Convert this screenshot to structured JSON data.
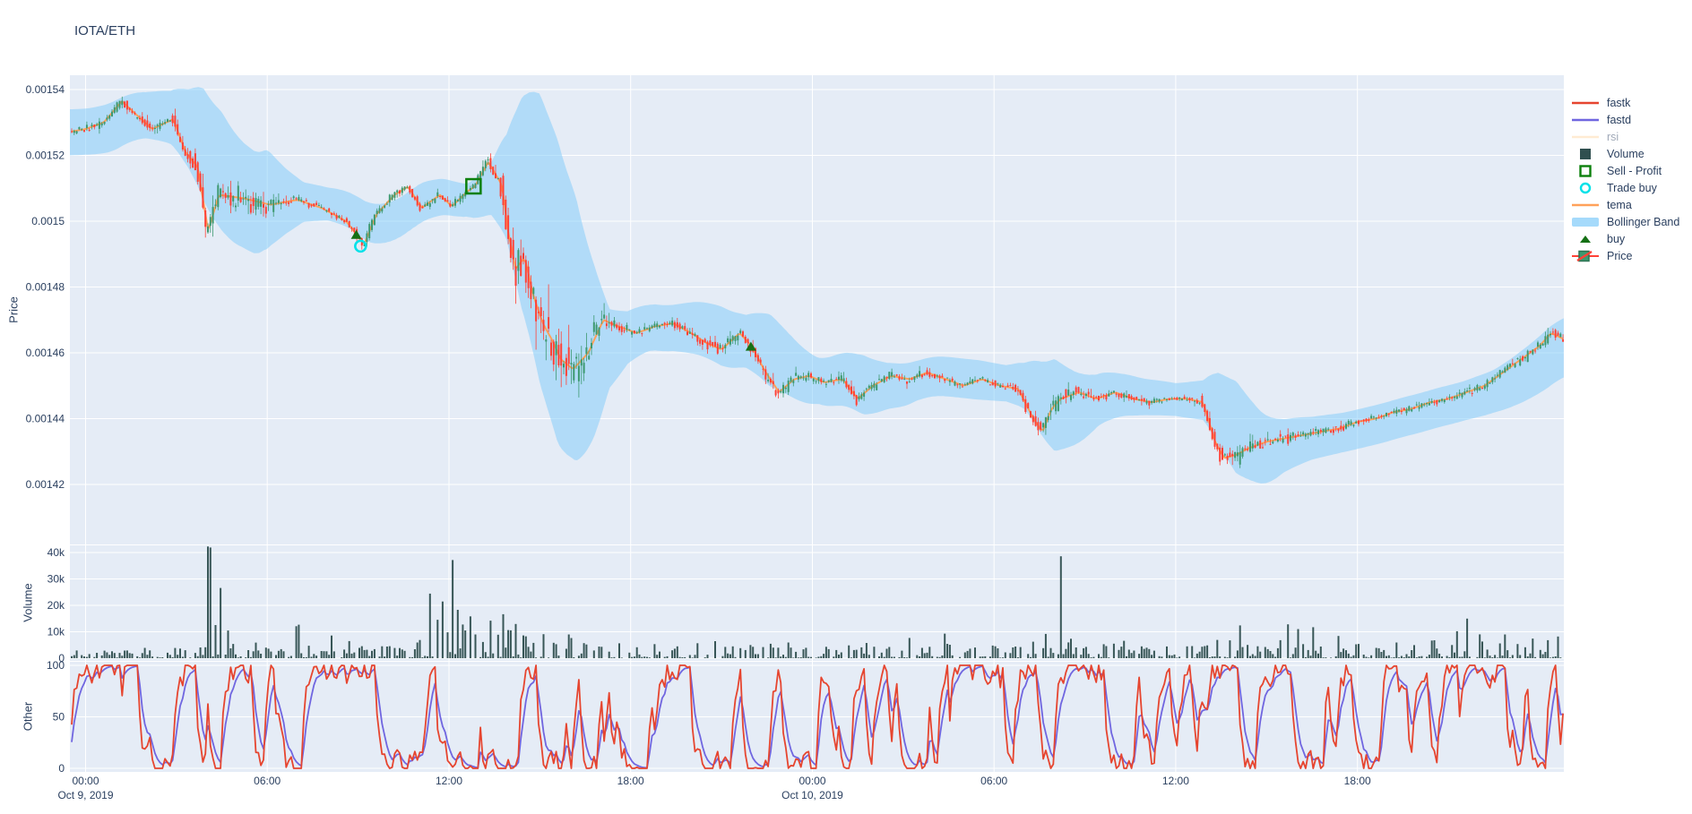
{
  "title": "IOTA/ETH",
  "axes": {
    "price_label": "Price",
    "volume_label": "Volume",
    "other_label": "Other"
  },
  "colors": {
    "paper_bg": "#ffffff",
    "plot_bg": "#E5ECF6",
    "grid": "#ffffff",
    "text": "#2a3f5f",
    "candle_up": "#3D9970",
    "candle_down": "#FF4136",
    "tema": "#FFA15A",
    "bollinger_fill": "rgba(135,206,250,0.55)",
    "volume_bar": "#2F4F4F",
    "fastk": "#E6452F",
    "fastd": "#7066E0",
    "rsi": "#FFD9A8",
    "buy_marker": "#157015",
    "sell_profit_marker": "#0C800C",
    "trade_buy_marker": "#00E1E8"
  },
  "legend": {
    "items": [
      {
        "label": "fastk",
        "type": "line",
        "color": "#E6452F",
        "disabled": false
      },
      {
        "label": "fastd",
        "type": "line",
        "color": "#7066E0",
        "disabled": false
      },
      {
        "label": "rsi",
        "type": "line",
        "color": "#FFD9A8",
        "disabled": true
      },
      {
        "label": "Volume",
        "type": "square",
        "color": "#2F4F4F",
        "disabled": false
      },
      {
        "label": "Sell - Profit",
        "type": "open-square",
        "color": "#0C800C",
        "disabled": false
      },
      {
        "label": "Trade buy",
        "type": "open-circle",
        "color": "#00E1E8",
        "disabled": false
      },
      {
        "label": "tema",
        "type": "line",
        "color": "#FFA15A",
        "disabled": false
      },
      {
        "label": "Bollinger Band",
        "type": "band",
        "color": "rgba(135,206,250,0.75)",
        "disabled": false
      },
      {
        "label": "buy",
        "type": "triangle",
        "color": "#157015",
        "disabled": false
      },
      {
        "label": "Price",
        "type": "candle",
        "color": "#3D9970",
        "disabled": false
      }
    ]
  },
  "x_axis": {
    "tick_hours": [
      0,
      6,
      12,
      18,
      24,
      30,
      36,
      42
    ],
    "tick_labels": [
      "00:00",
      "06:00",
      "12:00",
      "18:00",
      "00:00",
      "06:00",
      "12:00",
      "18:00"
    ],
    "date_labels": [
      {
        "tick_index": 0,
        "label": "Oct 9, 2019"
      },
      {
        "tick_index": 4,
        "label": "Oct 10, 2019"
      }
    ],
    "hours_range": [
      -0.52,
      48.85
    ]
  },
  "chart_data": [
    {
      "name": "price",
      "type": "candlestick",
      "ylabel": "Price",
      "ylim": [
        0.0014016,
        0.0015444
      ],
      "yticks": [
        {
          "label": "0.00154",
          "value": 0.00154
        },
        {
          "label": "0.00152",
          "value": 0.00152
        },
        {
          "label": "0.0015",
          "value": 0.0015
        },
        {
          "label": "0.00148",
          "value": 0.00148
        },
        {
          "label": "0.00146",
          "value": 0.00146
        },
        {
          "label": "0.00144",
          "value": 0.00144
        },
        {
          "label": "0.00142",
          "value": 0.00142
        }
      ],
      "candle_interval_minutes": 5,
      "series_hidden": [
        "rsi"
      ],
      "tema_anchors": [
        [
          -0.6,
          0.001527
        ],
        [
          0,
          0.001528
        ],
        [
          0.6,
          0.00153
        ],
        [
          1.2,
          0.0015365
        ],
        [
          1.6,
          0.001533
        ],
        [
          2.2,
          0.001528
        ],
        [
          2.9,
          0.001531
        ],
        [
          3.3,
          0.001521
        ],
        [
          3.7,
          0.0015165
        ],
        [
          4.05,
          0.001497
        ],
        [
          4.4,
          0.001508
        ],
        [
          5.2,
          0.001507
        ],
        [
          6.1,
          0.001505
        ],
        [
          7.0,
          0.0015065
        ],
        [
          7.8,
          0.001504
        ],
        [
          8.6,
          0.0015
        ],
        [
          8.95,
          0.001496
        ],
        [
          9.2,
          0.001493
        ],
        [
          9.6,
          0.001502
        ],
        [
          10.2,
          0.001508
        ],
        [
          10.65,
          0.0015105
        ],
        [
          11.1,
          0.001504
        ],
        [
          11.7,
          0.001508
        ],
        [
          12.1,
          0.0015045
        ],
        [
          12.6,
          0.001509
        ],
        [
          12.85,
          0.0015105
        ],
        [
          13.3,
          0.001518
        ],
        [
          13.75,
          0.001511
        ],
        [
          13.95,
          0.001497
        ],
        [
          14.2,
          0.0014855
        ],
        [
          14.5,
          0.001489
        ],
        [
          14.8,
          0.001477
        ],
        [
          15.1,
          0.001469
        ],
        [
          15.4,
          0.001464
        ],
        [
          15.7,
          0.001458
        ],
        [
          16.1,
          0.001455
        ],
        [
          16.6,
          0.00146
        ],
        [
          17.1,
          0.00147
        ],
        [
          17.6,
          0.001468
        ],
        [
          18.2,
          0.001466
        ],
        [
          18.8,
          0.001468
        ],
        [
          19.4,
          0.001469
        ],
        [
          20.0,
          0.001466
        ],
        [
          20.5,
          0.001463
        ],
        [
          21.0,
          0.001461
        ],
        [
          21.6,
          0.001466
        ],
        [
          22.0,
          0.001462
        ],
        [
          22.4,
          0.001455
        ],
        [
          22.9,
          0.001448
        ],
        [
          23.4,
          0.001452
        ],
        [
          23.9,
          0.001453
        ],
        [
          24.4,
          0.001451
        ],
        [
          25.0,
          0.001452
        ],
        [
          25.5,
          0.001446
        ],
        [
          26.0,
          0.00145
        ],
        [
          26.6,
          0.001453
        ],
        [
          27.2,
          0.001452
        ],
        [
          27.8,
          0.001454
        ],
        [
          28.4,
          0.001452
        ],
        [
          29.0,
          0.00145
        ],
        [
          29.6,
          0.001452
        ],
        [
          30.2,
          0.00145
        ],
        [
          30.8,
          0.001449
        ],
        [
          31.3,
          0.00144
        ],
        [
          31.6,
          0.001436
        ],
        [
          31.9,
          0.001443
        ],
        [
          32.2,
          0.001446
        ],
        [
          32.8,
          0.001448
        ],
        [
          33.4,
          0.001446
        ],
        [
          34.0,
          0.001448
        ],
        [
          34.6,
          0.001446
        ],
        [
          35.2,
          0.001445
        ],
        [
          35.8,
          0.001446
        ],
        [
          36.4,
          0.001446
        ],
        [
          36.9,
          0.001445
        ],
        [
          37.3,
          0.001433
        ],
        [
          37.6,
          0.001428
        ],
        [
          38.0,
          0.001429
        ],
        [
          38.4,
          0.001431
        ],
        [
          39.0,
          0.001433
        ],
        [
          39.6,
          0.001434
        ],
        [
          40.2,
          0.001435
        ],
        [
          40.8,
          0.001436
        ],
        [
          41.4,
          0.001437
        ],
        [
          42.0,
          0.001439
        ],
        [
          42.6,
          0.00144
        ],
        [
          43.2,
          0.001442
        ],
        [
          43.8,
          0.001443
        ],
        [
          44.4,
          0.001445
        ],
        [
          45.0,
          0.001446
        ],
        [
          45.6,
          0.001448
        ],
        [
          46.2,
          0.00145
        ],
        [
          46.8,
          0.001454
        ],
        [
          47.4,
          0.001458
        ],
        [
          48.0,
          0.001462
        ],
        [
          48.4,
          0.001466
        ],
        [
          48.85,
          0.001464
        ]
      ],
      "bollinger_halfwidth_anchors": [
        [
          -0.5,
          7e-06
        ],
        [
          0,
          7e-06
        ],
        [
          1,
          7.5e-06
        ],
        [
          2,
          7e-06
        ],
        [
          2.8,
          8e-06
        ],
        [
          3.4,
          1.2e-05
        ],
        [
          3.9,
          1.7e-05
        ],
        [
          4.5,
          1.8e-05
        ],
        [
          5.2,
          1.6e-05
        ],
        [
          6.0,
          1.5e-05
        ],
        [
          6.6,
          1e-05
        ],
        [
          7.2,
          6e-06
        ],
        [
          8.0,
          5e-06
        ],
        [
          8.8,
          5.5e-06
        ],
        [
          9.4,
          6e-06
        ],
        [
          10.2,
          6e-06
        ],
        [
          11.0,
          6e-06
        ],
        [
          11.8,
          5.5e-06
        ],
        [
          12.6,
          5e-06
        ],
        [
          13.4,
          8e-06
        ],
        [
          13.9,
          1.6e-05
        ],
        [
          14.4,
          3.2e-05
        ],
        [
          15.0,
          4.4e-05
        ],
        [
          15.6,
          4.6e-05
        ],
        [
          16.2,
          4e-05
        ],
        [
          16.8,
          2.6e-05
        ],
        [
          17.3,
          1.2e-05
        ],
        [
          17.9,
          8e-06
        ],
        [
          18.6,
          7e-06
        ],
        [
          19.4,
          7e-06
        ],
        [
          20.2,
          8e-06
        ],
        [
          21.0,
          9e-06
        ],
        [
          21.8,
          8e-06
        ],
        [
          22.6,
          1.1e-05
        ],
        [
          23.4,
          9e-06
        ],
        [
          24.2,
          7e-06
        ],
        [
          25.0,
          8e-06
        ],
        [
          25.7,
          9e-06
        ],
        [
          26.5,
          7e-06
        ],
        [
          27.5,
          6e-06
        ],
        [
          28.5,
          6e-06
        ],
        [
          29.5,
          6e-06
        ],
        [
          30.4,
          5.5e-06
        ],
        [
          31.0,
          7e-06
        ],
        [
          31.4,
          1e-05
        ],
        [
          32.0,
          1.4e-05
        ],
        [
          32.7,
          1.1e-05
        ],
        [
          33.4,
          8e-06
        ],
        [
          34.2,
          6.5e-06
        ],
        [
          35.0,
          5.5e-06
        ],
        [
          36.0,
          5e-06
        ],
        [
          36.9,
          6e-06
        ],
        [
          37.4,
          1.1e-05
        ],
        [
          38.0,
          1.4e-05
        ],
        [
          38.8,
          1.1e-05
        ],
        [
          39.6,
          8e-06
        ],
        [
          40.5,
          6.5e-06
        ],
        [
          41.5,
          6e-06
        ],
        [
          42.5,
          6e-06
        ],
        [
          43.5,
          6e-06
        ],
        [
          44.5,
          6e-06
        ],
        [
          45.5,
          6e-06
        ],
        [
          46.5,
          6.5e-06
        ],
        [
          47.5,
          8e-06
        ],
        [
          48.3,
          9e-06
        ],
        [
          48.85,
          9e-06
        ]
      ],
      "markers": {
        "buy": [
          [
            8.94,
            0.001496
          ],
          [
            21.97,
            0.001462
          ]
        ],
        "trade_buy": [
          [
            9.08,
            0.0014924
          ]
        ],
        "sell_profit": [
          [
            12.81,
            0.0015106
          ]
        ]
      },
      "candle_seed": 5
    },
    {
      "name": "volume",
      "type": "bar",
      "ylabel": "Volume",
      "ylim": [
        0,
        43000
      ],
      "yticks": [
        {
          "label": "40k",
          "value": 40000
        },
        {
          "label": "30k",
          "value": 30000
        },
        {
          "label": "20k",
          "value": 20000
        },
        {
          "label": "10k",
          "value": 10000
        },
        {
          "label": "0",
          "value": 0
        }
      ],
      "spike_anchors_k": [
        [
          0.4,
          2
        ],
        [
          0.9,
          3
        ],
        [
          1.5,
          2
        ],
        [
          2.1,
          3
        ],
        [
          2.7,
          2
        ],
        [
          3.3,
          3
        ],
        [
          3.8,
          4
        ],
        [
          4.08,
          41
        ],
        [
          4.3,
          12
        ],
        [
          4.45,
          25
        ],
        [
          4.7,
          11
        ],
        [
          4.9,
          5
        ],
        [
          5.4,
          3
        ],
        [
          6.0,
          4
        ],
        [
          6.5,
          3
        ],
        [
          7.0,
          13
        ],
        [
          7.35,
          5
        ],
        [
          7.8,
          3
        ],
        [
          8.15,
          8
        ],
        [
          8.7,
          6
        ],
        [
          9.1,
          4
        ],
        [
          9.5,
          3
        ],
        [
          10.0,
          5
        ],
        [
          10.5,
          3
        ],
        [
          11.0,
          6
        ],
        [
          11.4,
          26
        ],
        [
          11.6,
          14
        ],
        [
          11.8,
          20
        ],
        [
          11.95,
          10
        ],
        [
          12.1,
          36
        ],
        [
          12.3,
          17
        ],
        [
          12.5,
          12
        ],
        [
          12.7,
          15
        ],
        [
          12.9,
          8
        ],
        [
          13.1,
          6
        ],
        [
          13.35,
          15
        ],
        [
          13.6,
          10
        ],
        [
          13.8,
          17
        ],
        [
          14.0,
          12
        ],
        [
          14.2,
          14
        ],
        [
          14.5,
          8
        ],
        [
          14.8,
          6
        ],
        [
          15.1,
          9
        ],
        [
          15.5,
          6
        ],
        [
          16.0,
          8
        ],
        [
          16.5,
          5
        ],
        [
          17.0,
          4
        ],
        [
          17.6,
          5
        ],
        [
          18.2,
          4
        ],
        [
          18.8,
          6
        ],
        [
          19.5,
          4
        ],
        [
          20.2,
          5
        ],
        [
          20.8,
          7
        ],
        [
          21.4,
          4
        ],
        [
          22.0,
          5
        ],
        [
          22.6,
          5
        ],
        [
          23.2,
          6
        ],
        [
          23.8,
          4
        ],
        [
          24.5,
          4
        ],
        [
          25.2,
          5
        ],
        [
          25.8,
          6
        ],
        [
          26.5,
          4
        ],
        [
          27.2,
          7
        ],
        [
          27.9,
          4
        ],
        [
          28.5,
          5
        ],
        [
          29.2,
          4
        ],
        [
          30.0,
          5
        ],
        [
          30.7,
          4
        ],
        [
          31.3,
          6
        ],
        [
          31.7,
          8
        ],
        [
          32.17,
          39
        ],
        [
          32.5,
          7
        ],
        [
          33.0,
          4
        ],
        [
          33.6,
          5
        ],
        [
          34.3,
          6
        ],
        [
          35.0,
          4
        ],
        [
          35.7,
          5
        ],
        [
          36.4,
          4
        ],
        [
          37.0,
          5
        ],
        [
          37.35,
          8
        ],
        [
          37.8,
          6
        ],
        [
          38.4,
          5
        ],
        [
          39.0,
          4
        ],
        [
          39.45,
          6
        ],
        [
          39.7,
          12
        ],
        [
          40.2,
          5
        ],
        [
          40.8,
          4
        ],
        [
          41.4,
          8
        ],
        [
          42.0,
          5
        ],
        [
          42.7,
          4
        ],
        [
          43.3,
          6
        ],
        [
          43.9,
          5
        ],
        [
          44.5,
          6
        ],
        [
          45.1,
          5
        ],
        [
          45.6,
          15
        ],
        [
          46.1,
          6
        ],
        [
          46.7,
          5
        ],
        [
          47.3,
          6
        ],
        [
          47.8,
          7
        ],
        [
          48.3,
          6
        ],
        [
          48.6,
          8
        ]
      ],
      "noise_seed": 11
    },
    {
      "name": "other",
      "type": "line",
      "ylabel": "Other",
      "ylim": [
        0,
        100
      ],
      "yticks": [
        {
          "label": "100",
          "value": 100
        },
        {
          "label": "50",
          "value": 50
        },
        {
          "label": "0",
          "value": 0
        }
      ],
      "series": [
        {
          "name": "fastk",
          "color": "#E6452F",
          "pattern": "stochastic 0-100, saturates at extremes"
        },
        {
          "name": "fastd",
          "color": "#7066E0",
          "pattern": "smoothed fastk"
        }
      ],
      "osc_seed": 9
    }
  ]
}
